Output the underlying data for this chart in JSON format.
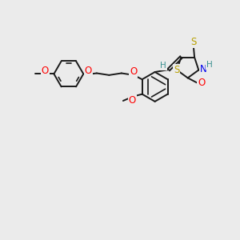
{
  "background_color": "#ebebeb",
  "bond_color": "#1a1a1a",
  "bond_width": 1.4,
  "atom_colors": {
    "O": "#ff0000",
    "S_ring": "#b8a000",
    "S_exo": "#b8a000",
    "N": "#0000ee",
    "H": "#3a9090",
    "C_label": "#1a1a1a"
  },
  "font_size_atom": 8.5,
  "font_size_H": 7.5,
  "figsize": [
    3.0,
    3.0
  ],
  "dpi": 100
}
